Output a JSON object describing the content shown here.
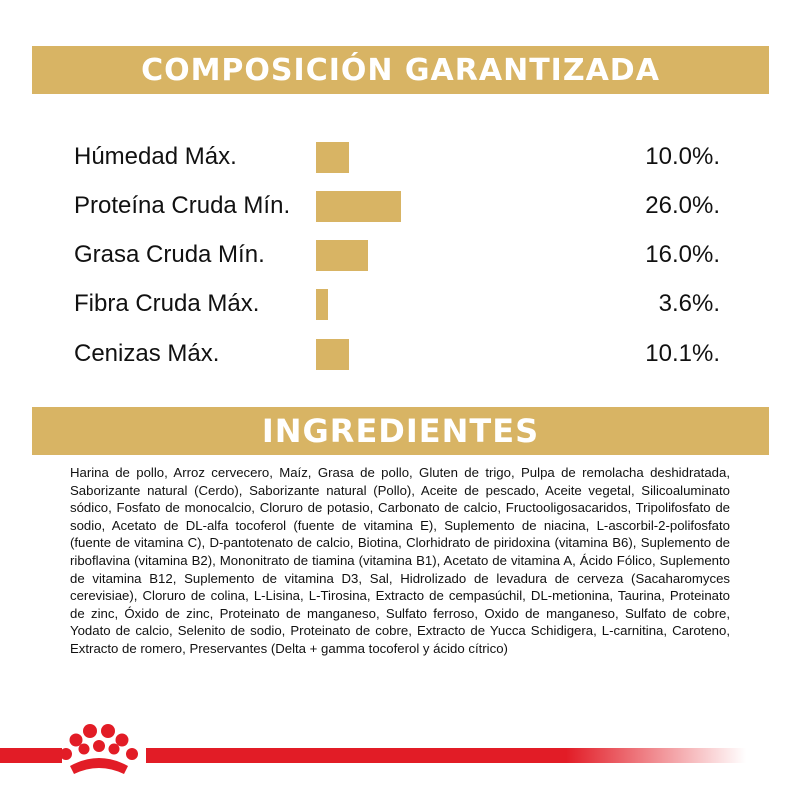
{
  "composition": {
    "title": "COMPOSICIÓN GARANTIZADA",
    "rows": [
      {
        "label": "Húmedad Máx.",
        "value": "10.0%.",
        "percent": 10.0
      },
      {
        "label": "Proteína Cruda Mín.",
        "value": "26.0%.",
        "percent": 26.0
      },
      {
        "label": "Grasa Cruda Mín.",
        "value": "16.0%.",
        "percent": 16.0
      },
      {
        "label": "Fibra Cruda Máx.",
        "value": "3.6%.",
        "percent": 3.6
      },
      {
        "label": "Cenizas Máx.",
        "value": "10.1%.",
        "percent": 10.1
      }
    ]
  },
  "ingredients": {
    "title": "INGREDIENTES",
    "text": "Harina de pollo, Arroz cervecero, Maíz, Grasa de pollo, Gluten de trigo, Pulpa de remolacha deshidratada, Saborizante natural (Cerdo), Saborizante natural (Pollo), Aceite de pescado, Aceite vegetal, Silicoaluminato sódico, Fosfato de monocalcio, Cloruro de potasio, Carbonato de calcio, Fructooligosacaridos, Tripolifosfato de sodio, Acetato de DL-alfa tocoferol (fuente de vitamina E), Suplemento de niacina, L-ascorbil-2-polifosfato (fuente de vitamina C), D-pantotenato de calcio, Biotina, Clorhidrato de piridoxina (vitamina B6), Suplemento de riboflavina (vitamina B2), Mononitrato de tiamina (vitamina B1), Acetato de vitamina A, Ácido Fólico, Suplemento de vitamina B12, Suplemento de vitamina D3, Sal, Hidrolizado de levadura de cerveza (Sacaharomyces cerevisiae), Cloruro de colina, L-Lisina, L-Tirosina, Extracto de cempasúchil, DL-metionina, Taurina, Proteinato de zinc, Óxido de zinc, Proteinato de manganeso, Sulfato ferroso, Oxido de manganeso, Sulfato de cobre, Yodato de calcio, Selenito de sodio, Proteinato de cobre, Extracto de Yucca Schidigera, L-carnitina, Caroteno, Extracto de romero, Preservantes (Delta + gamma tocoferol y ácido cítrico)"
  },
  "colors": {
    "gold": "#d8b464",
    "brand_red": "#e21c26"
  },
  "logo": {
    "icon": "royal-crown-icon"
  }
}
